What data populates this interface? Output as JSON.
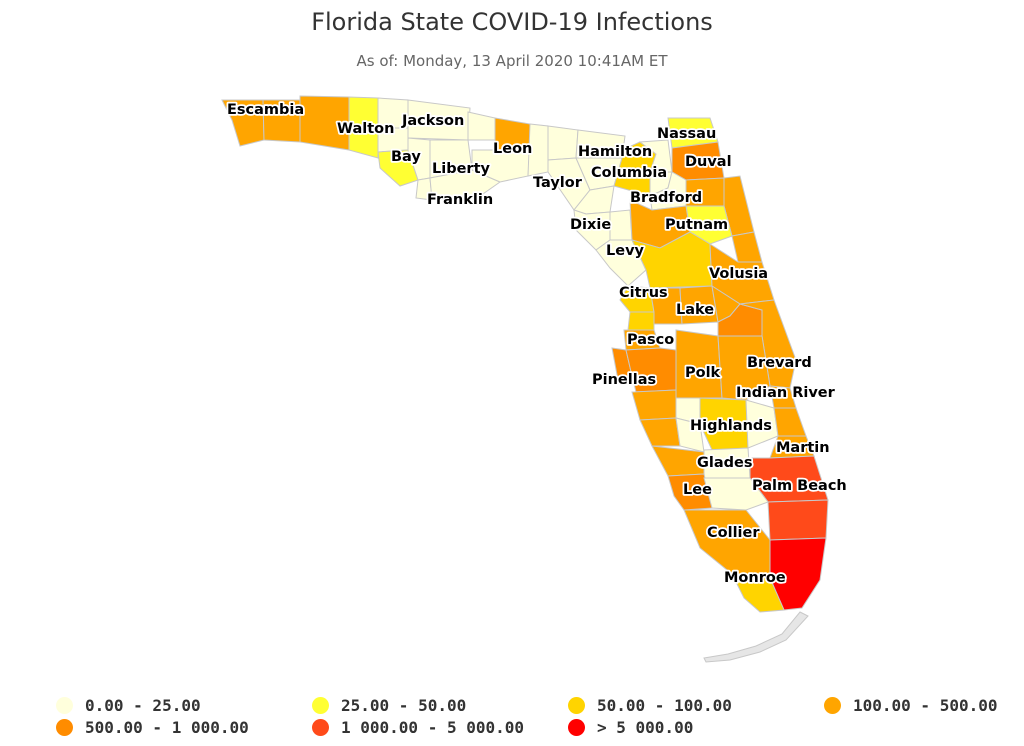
{
  "title": "Florida State COVID-19 Infections",
  "subtitle": "As of: Monday, 13 April 2020 10:41AM ET",
  "colors": {
    "c0": "#ffffdc",
    "c1": "#ffff33",
    "c2": "#ffd400",
    "c3": "#ffa500",
    "c4": "#ff8c00",
    "c5": "#ff4a1a",
    "c6": "#ff0000",
    "border": "#c8c8c8"
  },
  "legend": [
    {
      "label": "0.00 - 25.00",
      "color": "#ffffdc"
    },
    {
      "label": "25.00 - 50.00",
      "color": "#ffff33"
    },
    {
      "label": "50.00 - 100.00",
      "color": "#ffd400"
    },
    {
      "label": "100.00 - 500.00",
      "color": "#ffa500"
    },
    {
      "label": "500.00 - 1 000.00",
      "color": "#ff8c00"
    },
    {
      "label": "1 000.00 - 5 000.00",
      "color": "#ff4a1a"
    },
    {
      "label": "> 5 000.00",
      "color": "#ff0000"
    }
  ],
  "counties": {
    "escambia": "Escambia",
    "walton": "Walton",
    "jackson": "Jackson",
    "bay": "Bay",
    "liberty": "Liberty",
    "franklin": "Franklin",
    "leon": "Leon",
    "hamilton": "Hamilton",
    "taylor": "Taylor",
    "columbia": "Columbia",
    "nassau": "Nassau",
    "duval": "Duval",
    "bradford": "Bradford",
    "putnam": "Putnam",
    "dixie": "Dixie",
    "levy": "Levy",
    "volusia": "Volusia",
    "citrus": "Citrus",
    "lake": "Lake",
    "pasco": "Pasco",
    "brevard": "Brevard",
    "pinellas": "Pinellas",
    "polk": "Polk",
    "indian_river": "Indian River",
    "highlands": "Highlands",
    "martin": "Martin",
    "glades": "Glades",
    "palm_beach": "Palm Beach",
    "lee": "Lee",
    "collier": "Collier",
    "monroe": "Monroe"
  }
}
